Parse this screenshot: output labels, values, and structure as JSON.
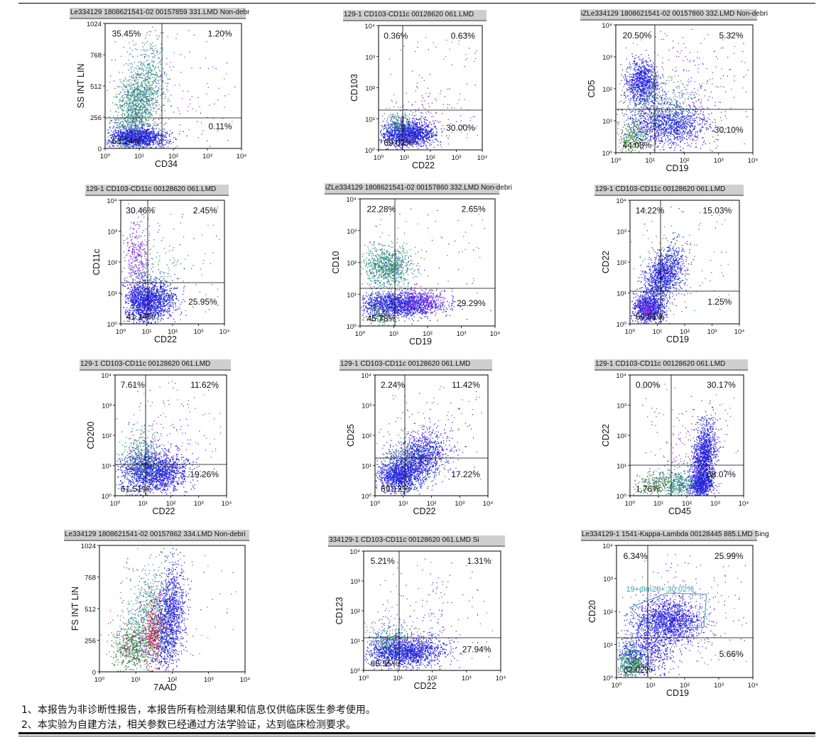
{
  "panels": [
    {
      "title": "Le334129 1808621541-02 00157859 331.LMD  Non-debr",
      "xlabel": "CD34",
      "ylabel": "SS INT LIN",
      "yscale": "linear",
      "xticks": [
        "10⁰",
        "10¹",
        "10²",
        "10³",
        "10⁴"
      ],
      "yticks": [
        "0",
        "256",
        "512",
        "768",
        "1024"
      ],
      "quadrants": [
        "35.45%",
        "1.20%",
        "63.24%",
        "0.11%"
      ]
    },
    {
      "title": "129-1 CD103-CD11c 00128620 061.LMD",
      "xlabel": "CD22",
      "ylabel": "CD103",
      "yscale": "log",
      "xticks": [
        "10⁰",
        "10¹",
        "10²",
        "10³",
        "10⁴"
      ],
      "yticks": [
        "10⁰",
        "10¹",
        "10²",
        "10³",
        "10⁴"
      ],
      "quadrants": [
        "0.36%",
        "0.63%",
        "69.02%",
        "30.00%"
      ]
    },
    {
      "title": "iZLe334129 1808621541-02 00157860 332.LMD  Non-debri",
      "xlabel": "CD19",
      "ylabel": "CD5",
      "yscale": "log",
      "xticks": [
        "10⁰",
        "10¹",
        "10²",
        "10³",
        "10⁴"
      ],
      "yticks": [
        "10⁰",
        "10¹",
        "10²",
        "10³",
        "10⁴"
      ],
      "quadrants": [
        "20.50%",
        "5.32%",
        "44.08%",
        "30.10%"
      ]
    },
    {
      "title": "129-1 CD103-CD11c 00128620 061.LMD",
      "xlabel": "CD22",
      "ylabel": "CD11c",
      "yscale": "log",
      "xticks": [
        "10⁰",
        "10¹",
        "10²",
        "10³",
        "10⁴"
      ],
      "yticks": [
        "10⁰",
        "10¹",
        "10²",
        "10³",
        "10⁴"
      ],
      "quadrants": [
        "30.46%",
        "2.45%",
        "41.14%",
        "25.95%"
      ]
    },
    {
      "title": "iZLe334129 1808621541-02 00157860 332.LMD  Non-debri",
      "xlabel": "CD19",
      "ylabel": "CD10",
      "yscale": "log",
      "xticks": [
        "10⁰",
        "10¹",
        "10²",
        "10³",
        "10⁴"
      ],
      "yticks": [
        "10⁰",
        "10¹",
        "10²",
        "10³",
        "10⁴"
      ],
      "quadrants": [
        "22.28%",
        "2.65%",
        "45.78%",
        "29.29%"
      ]
    },
    {
      "title": "129-1 CD103-CD11c 00128620 061.LMD",
      "xlabel": "CD19",
      "ylabel": "CD22",
      "yscale": "log",
      "xticks": [
        "10⁰",
        "10¹",
        "10²",
        "10³",
        "10⁴"
      ],
      "yticks": [
        "10⁰",
        "10¹",
        "10²",
        "10³",
        "10⁴"
      ],
      "quadrants": [
        "14.22%",
        "15.03%",
        "69.51%",
        "1.25%"
      ]
    },
    {
      "title": "129-1 CD103-CD11c 00128620 061.LMD",
      "xlabel": "CD22",
      "ylabel": "CD200",
      "yscale": "log",
      "xticks": [
        "10⁰",
        "10¹",
        "10²",
        "10³",
        "10⁴"
      ],
      "yticks": [
        "10⁰",
        "10¹",
        "10²",
        "10³",
        "10⁴"
      ],
      "quadrants": [
        "7.61%",
        "11.62%",
        "61.51%",
        "19.26%"
      ]
    },
    {
      "title": "129-1 CD103-CD11c 00128620 061.LMD",
      "xlabel": "CD22",
      "ylabel": "CD25",
      "yscale": "log",
      "xticks": [
        "10⁰",
        "10¹",
        "10²",
        "10³",
        "10⁴"
      ],
      "yticks": [
        "10⁰",
        "10¹",
        "10²",
        "10³",
        "10⁴"
      ],
      "quadrants": [
        "2.24%",
        "11.42%",
        "69.12%",
        "17.22%"
      ]
    },
    {
      "title": "129-1 CD103-CD11c 00128620 061.LMD",
      "xlabel": "CD45",
      "ylabel": "CD22",
      "yscale": "log",
      "xticks": [
        "10⁰",
        "10¹",
        "10²",
        "10³",
        "10⁴"
      ],
      "yticks": [
        "10⁰",
        "10¹",
        "10²",
        "10³",
        "10⁴"
      ],
      "quadrants": [
        "0.00%",
        "30.17%",
        "1.76%",
        "68.07%"
      ]
    },
    {
      "title": "Le334129 1808621541-02 00157862 334.LMD  Non-debri",
      "xlabel": "7AAD",
      "ylabel": "FS INT LIN",
      "yscale": "linear",
      "xticks": [
        "10⁰",
        "10¹",
        "10²",
        "10³",
        "10⁴"
      ],
      "yticks": [
        "0",
        "256",
        "512",
        "768",
        "1024"
      ],
      "quadrants": []
    },
    {
      "title": "334129-1 CD103-CD11c 00128620 061.LMD  Si",
      "xlabel": "CD22",
      "ylabel": "CD123",
      "yscale": "log",
      "xticks": [
        "10⁰",
        "10¹",
        "10²",
        "10³",
        "10⁴"
      ],
      "yticks": [
        "10⁰",
        "10¹",
        "10²",
        "10³",
        "10⁴"
      ],
      "quadrants": [
        "5.21%",
        "1.31%",
        "65.55%",
        "27.94%"
      ]
    },
    {
      "title": "Le334129-1 1541-Kappa-Lambda 00128445 885.LMD  Sing",
      "xlabel": "CD19",
      "ylabel": "CD20",
      "yscale": "log",
      "xticks": [
        "10⁰",
        "10¹",
        "10²",
        "10³",
        "10⁴"
      ],
      "yticks": [
        "10⁰",
        "10¹",
        "10²",
        "10³",
        "10⁴"
      ],
      "quadrants": [
        "6.34%",
        "25.99%",
        "62.02%",
        "5.66%"
      ],
      "gate_label": "19+dim20+:30.02%"
    }
  ],
  "notes": [
    "1、本报告为非诊断性报告，本报告所有检测结果和信息仅供临床医生参考使用。",
    "2、本实验为自建方法，相关参数已经通过方法学验证，达到临床检测要求。"
  ],
  "colors": {
    "blue": "#1f1fe0",
    "teal": "#2a8f7f",
    "purple": "#8a2be2",
    "green": "#2e8b2e",
    "red": "#d01010",
    "magenta": "#b03090",
    "gate": "#5aa6b0",
    "title_bg": "#cfcfcf"
  }
}
